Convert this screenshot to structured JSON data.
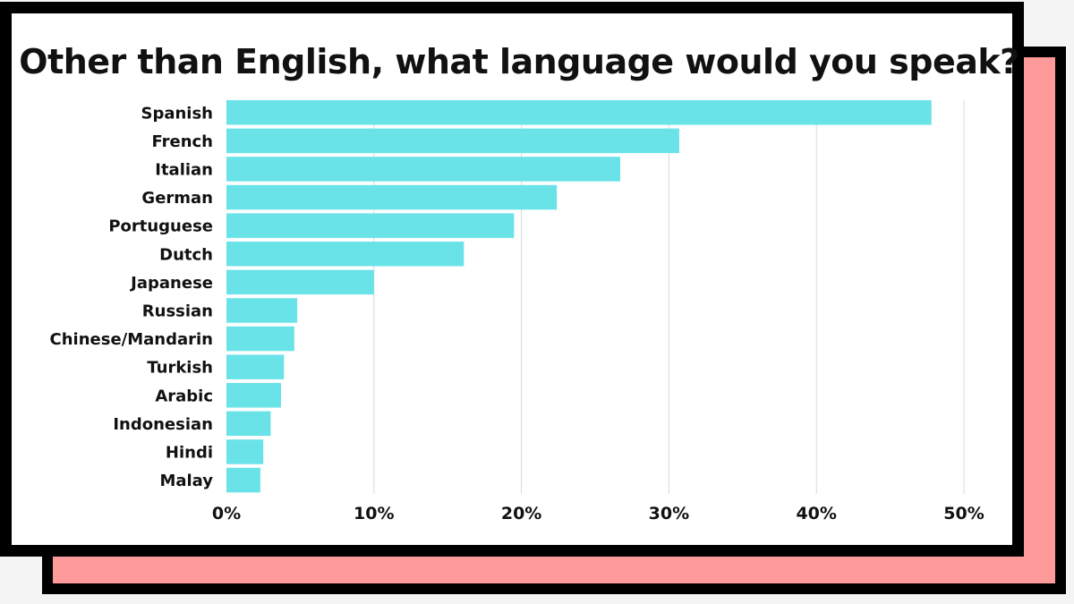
{
  "chart_data": {
    "type": "bar",
    "orientation": "horizontal",
    "title": "Other than English, what language would you speak?",
    "categories": [
      "Spanish",
      "French",
      "Italian",
      "German",
      "Portuguese",
      "Dutch",
      "Japanese",
      "Russian",
      "Chinese/Mandarin",
      "Turkish",
      "Arabic",
      "Indonesian",
      "Hindi",
      "Malay"
    ],
    "values": [
      47.8,
      30.7,
      26.7,
      22.4,
      19.5,
      16.1,
      10.0,
      4.8,
      4.6,
      3.9,
      3.7,
      3.0,
      2.5,
      2.3
    ],
    "xlim": [
      0,
      50
    ],
    "xticks": [
      0,
      10,
      20,
      30,
      40,
      50
    ],
    "xtick_labels": [
      "0%",
      "10%",
      "20%",
      "30%",
      "40%",
      "50%"
    ],
    "xlabel": "",
    "ylabel": "",
    "grid": "vertical",
    "bar_color": "#6ae3e8"
  },
  "colors": {
    "bar": "#6ae3e8",
    "shadow_card": "#ff9a9a",
    "border": "#000000",
    "grid": "#d9d9d9"
  }
}
